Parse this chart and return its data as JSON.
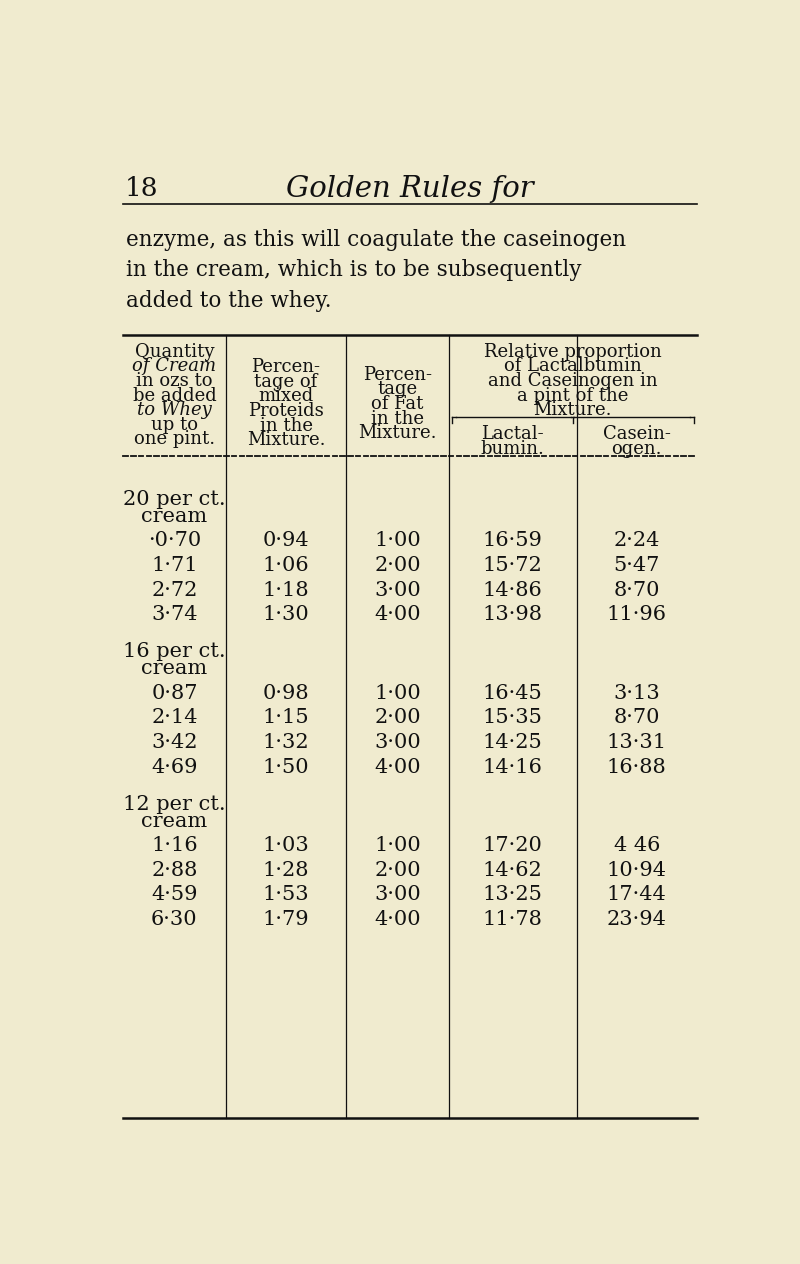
{
  "bg_color": "#f0ebcf",
  "text_color": "#111111",
  "page_number": "18",
  "page_title": "Golden Rules for",
  "intro_text_lines": [
    "enzyme, as this will coagulate the caseinogen",
    "in the cream, which is to be subsequently",
    "added to the whey."
  ],
  "col_headers": {
    "col1": [
      "Quantity",
      "of Cream",
      "in ozs to",
      "be added",
      "to Whey",
      "up to",
      "one pint."
    ],
    "col2": [
      "Percen-",
      "tage of",
      "mixed",
      "Proteids",
      "in the",
      "Mixture."
    ],
    "col3": [
      "Percen-",
      "tage",
      "of Fat",
      "in the",
      "Mixture."
    ],
    "col4_span": [
      "Relative proportion",
      "of Lactalbumin",
      "and Caseinogen in",
      "a pint of the",
      "Mixture."
    ],
    "col4": [
      "Lactal-",
      "bumin."
    ],
    "col5": [
      "Casein-",
      "ogen."
    ]
  },
  "col1_italic": [
    "of Cream",
    "to Whey"
  ],
  "sections": [
    {
      "label_line1": "20 per ct.",
      "label_line2": "cream",
      "rows": [
        {
          "col1": "·0·70",
          "col2": "0·94",
          "col3": "1·00",
          "col4": "16·59",
          "col5": "2·24"
        },
        {
          "col1": "1·71",
          "col2": "1·06",
          "col3": "2·00",
          "col4": "15·72",
          "col5": "5·47"
        },
        {
          "col1": "2·72",
          "col2": "1·18",
          "col3": "3·00",
          "col4": "14·86",
          "col5": "8·70"
        },
        {
          "col1": "3·74",
          "col2": "1·30",
          "col3": "4·00",
          "col4": "13·98",
          "col5": "11·96"
        }
      ]
    },
    {
      "label_line1": "16 per ct.",
      "label_line2": "cream",
      "rows": [
        {
          "col1": "0·87",
          "col2": "0·98",
          "col3": "1·00",
          "col4": "16·45",
          "col5": "3·13"
        },
        {
          "col1": "2·14",
          "col2": "1·15",
          "col3": "2·00",
          "col4": "15·35",
          "col5": "8·70"
        },
        {
          "col1": "3·42",
          "col2": "1·32",
          "col3": "3·00",
          "col4": "14·25",
          "col5": "13·31"
        },
        {
          "col1": "4·69",
          "col2": "1·50",
          "col3": "4·00",
          "col4": "14·16",
          "col5": "16·88"
        }
      ]
    },
    {
      "label_line1": "12 per ct.",
      "label_line2": "cream",
      "rows": [
        {
          "col1": "1·16",
          "col2": "1·03",
          "col3": "1·00",
          "col4": "17·20",
          "col5": "4 46"
        },
        {
          "col1": "2·88",
          "col2": "1·28",
          "col3": "2·00",
          "col4": "14·62",
          "col5": "10·94"
        },
        {
          "col1": "4·59",
          "col2": "1·53",
          "col3": "3·00",
          "col4": "13·25",
          "col5": "17·44"
        },
        {
          "col1": "6·30",
          "col2": "1·79",
          "col3": "4·00",
          "col4": "11·78",
          "col5": "23·94"
        }
      ]
    }
  ]
}
